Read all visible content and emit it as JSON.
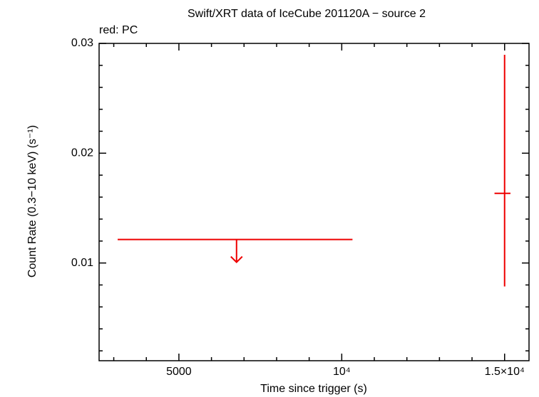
{
  "chart_data": {
    "type": "lightcurve",
    "title": "Swift/XRT data of IceCube 201120A − source 2",
    "annotation": "red: PC",
    "x_label": "Time since trigger (s)",
    "y_label": "Count Rate (0.3−10 keV) (s⁻¹)",
    "color": "#ee0000",
    "xlim": [
      2550,
      15750
    ],
    "ylim": [
      0.0011,
      0.03
    ],
    "xticks": [
      5000,
      {
        "value": 10000,
        "label": "10⁴"
      },
      {
        "value": 15000,
        "label": "1.5×10⁴"
      }
    ],
    "xminorticks": [
      3000,
      4000,
      6000,
      7000,
      8000,
      9000,
      11000,
      12000,
      13000,
      14000
    ],
    "yticks": [
      0.01,
      0.02,
      0.03
    ],
    "yminorticks": [
      0.002,
      0.004,
      0.006,
      0.008,
      0.012,
      0.014,
      0.016,
      0.018,
      0.022,
      0.024,
      0.026,
      0.028
    ],
    "upper_limits": [
      {
        "x": 6770,
        "x_low": 3120,
        "x_high": 10330,
        "y": 0.01214
      }
    ],
    "points": [
      {
        "x": 15000,
        "x_low": 14690,
        "x_high": 15180,
        "y": 0.01634,
        "y_low": 0.00786,
        "y_high": 0.02896
      }
    ]
  }
}
